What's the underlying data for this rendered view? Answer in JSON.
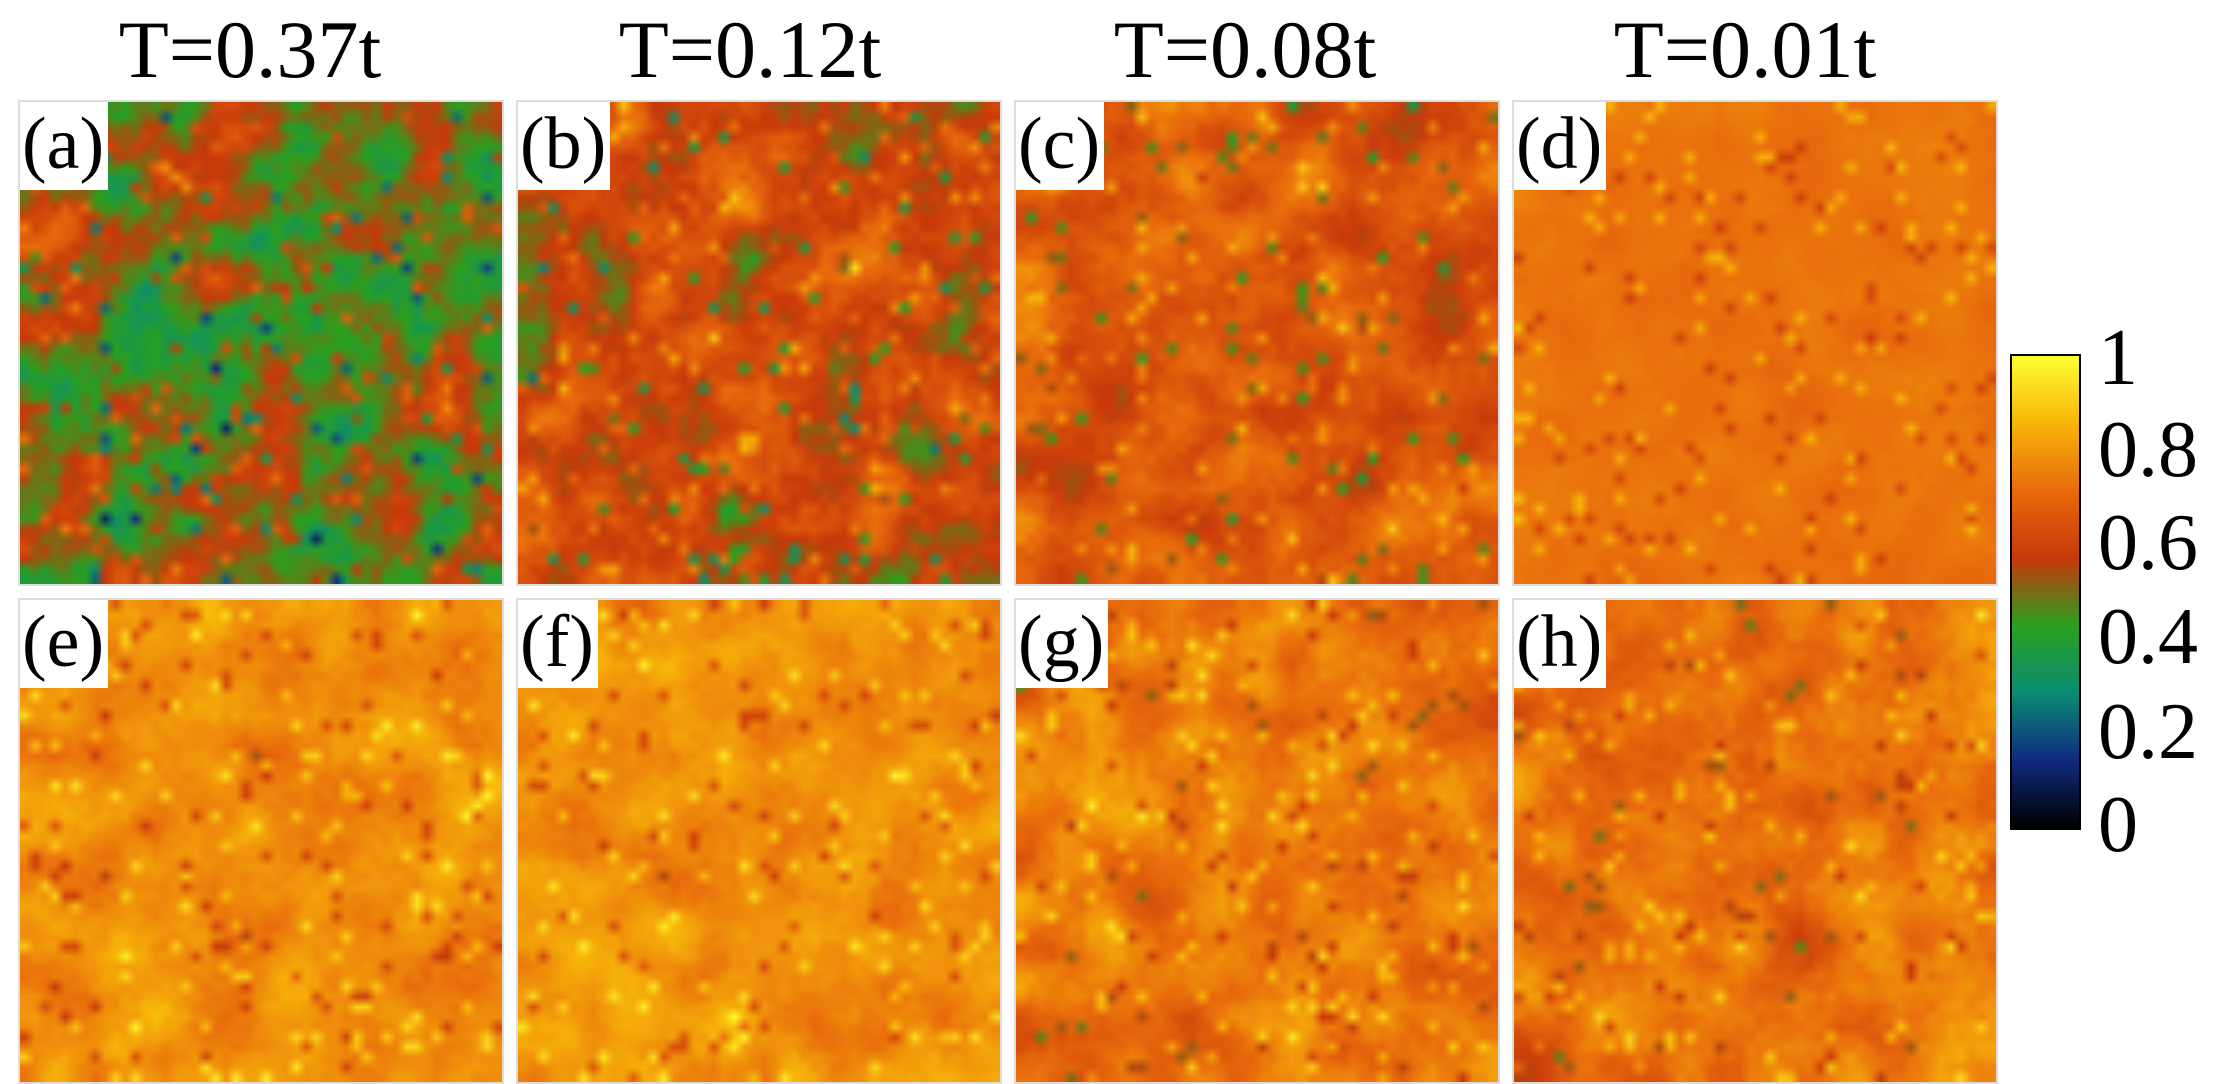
{
  "column_titles": [
    "T=0.37t",
    "T=0.12t",
    "T=0.08t",
    "T=0.01t"
  ],
  "panel_labels": [
    "(a)",
    "(b)",
    "(c)",
    "(d)",
    "(e)",
    "(f)",
    "(g)",
    "(h)"
  ],
  "colorbar": {
    "ticks": [
      "1",
      "0.8",
      "0.6",
      "0.4",
      "0.2",
      "0"
    ],
    "colors": [
      "#000000",
      "#102a80",
      "#0a8c72",
      "#2aa020",
      "#c8380a",
      "#e86a0c",
      "#f7b40a",
      "#ffff30"
    ]
  },
  "chart_data": [
    {
      "type": "heatmap",
      "panel": "(a)",
      "title": "T=0.37t",
      "grid": [
        48,
        48
      ],
      "value_range": [
        0,
        1
      ],
      "mean_value": 0.5,
      "spread": 0.2
    },
    {
      "type": "heatmap",
      "panel": "(b)",
      "title": "T=0.12t",
      "grid": [
        48,
        48
      ],
      "value_range": [
        0,
        1
      ],
      "mean_value": 0.6,
      "spread": 0.17
    },
    {
      "type": "heatmap",
      "panel": "(c)",
      "title": "T=0.08t",
      "grid": [
        48,
        48
      ],
      "value_range": [
        0,
        1
      ],
      "mean_value": 0.66,
      "spread": 0.12
    },
    {
      "type": "heatmap",
      "panel": "(d)",
      "title": "T=0.01t",
      "grid": [
        48,
        48
      ],
      "value_range": [
        0,
        1
      ],
      "mean_value": 0.73,
      "spread": 0.03
    },
    {
      "type": "heatmap",
      "panel": "(e)",
      "title": "T=0.37t",
      "grid": [
        48,
        48
      ],
      "value_range": [
        0,
        1
      ],
      "mean_value": 0.78,
      "spread": 0.08
    },
    {
      "type": "heatmap",
      "panel": "(f)",
      "title": "T=0.12t",
      "grid": [
        48,
        48
      ],
      "value_range": [
        0,
        1
      ],
      "mean_value": 0.79,
      "spread": 0.08
    },
    {
      "type": "heatmap",
      "panel": "(g)",
      "title": "T=0.08t",
      "grid": [
        48,
        48
      ],
      "value_range": [
        0,
        1
      ],
      "mean_value": 0.74,
      "spread": 0.1
    },
    {
      "type": "heatmap",
      "panel": "(h)",
      "title": "T=0.01t",
      "grid": [
        48,
        48
      ],
      "value_range": [
        0,
        1
      ],
      "mean_value": 0.73,
      "spread": 0.1
    }
  ]
}
